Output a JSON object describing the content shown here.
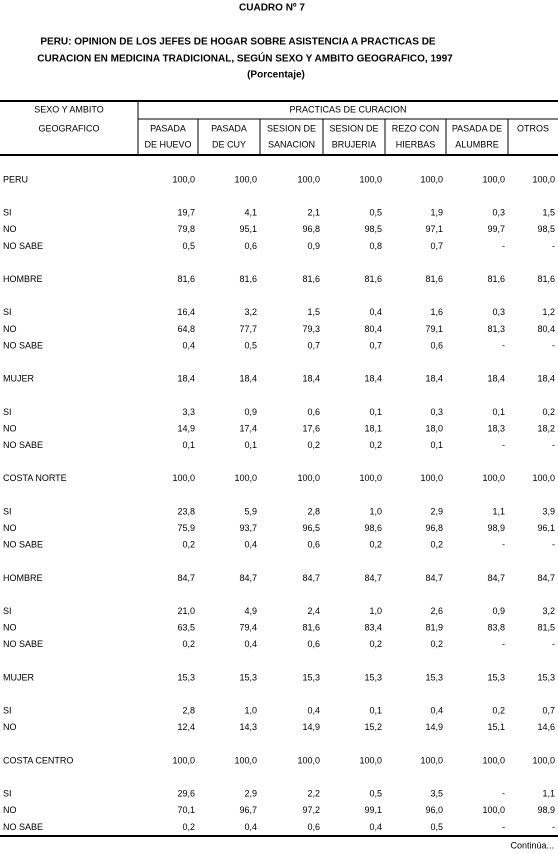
{
  "title": "CUADRO Nº 7",
  "subtitle": [
    "PERU: OPINION DE LOS JEFES DE HOGAR SOBRE ASISTENCIA A PRACTICAS DE",
    "CURACION EN MEDICINA TRADICIONAL, SEGÚN  SEXO Y AMBITO GEOGRAFICO, 1997"
  ],
  "unit": "(Porcentaje)",
  "header": {
    "stub": [
      "SEXO Y AMBITO",
      "GEOGRAFICO"
    ],
    "group": "PRACTICAS DE CURACION",
    "columns": [
      [
        "PASADA",
        "DE HUEVO"
      ],
      [
        "PASADA",
        "DE CUY"
      ],
      [
        "SESION DE",
        "SANACION"
      ],
      [
        "SESION DE",
        "BRUJERIA"
      ],
      [
        "REZO CON",
        "HIERBAS"
      ],
      [
        "PASADA DE",
        "ALUMBRE"
      ],
      [
        "OTROS"
      ]
    ]
  },
  "groups": [
    {
      "rows": [
        {
          "label": "PERU",
          "values": [
            "100,0",
            "100,0",
            "100,0",
            "100,0",
            "100,0",
            "100,0",
            "100,0"
          ]
        },
        {
          "label": "SI",
          "values": [
            "19,7",
            "4,1",
            "2,1",
            "0,5",
            "1,9",
            "0,3",
            "1,5"
          ]
        },
        {
          "label": "NO",
          "values": [
            "79,8",
            "95,1",
            "96,8",
            "98,5",
            "97,1",
            "99,7",
            "98,5"
          ]
        },
        {
          "label": "NO SABE",
          "values": [
            "0,5",
            "0,6",
            "0,9",
            "0,8",
            "0,7",
            "-",
            "-"
          ]
        }
      ]
    },
    {
      "rows": [
        {
          "label": "HOMBRE",
          "values": [
            "81,6",
            "81,6",
            "81,6",
            "81,6",
            "81,6",
            "81,6",
            "81,6"
          ]
        },
        {
          "label": "SI",
          "values": [
            "16,4",
            "3,2",
            "1,5",
            "0,4",
            "1,6",
            "0,3",
            "1,2"
          ]
        },
        {
          "label": "NO",
          "values": [
            "64,8",
            "77,7",
            "79,3",
            "80,4",
            "79,1",
            "81,3",
            "80,4"
          ]
        },
        {
          "label": "NO SABE",
          "values": [
            "0,4",
            "0,5",
            "0,7",
            "0,7",
            "0,6",
            "-",
            "-"
          ]
        }
      ]
    },
    {
      "rows": [
        {
          "label": "MUJER",
          "values": [
            "18,4",
            "18,4",
            "18,4",
            "18,4",
            "18,4",
            "18,4",
            "18,4"
          ]
        },
        {
          "label": "SI",
          "values": [
            "3,3",
            "0,9",
            "0,6",
            "0,1",
            "0,3",
            "0,1",
            "0,2"
          ]
        },
        {
          "label": "NO",
          "values": [
            "14,9",
            "17,4",
            "17,6",
            "18,1",
            "18,0",
            "18,3",
            "18,2"
          ]
        },
        {
          "label": "NO SABE",
          "values": [
            "0,1",
            "0,1",
            "0,2",
            "0,2",
            "0,1",
            "-",
            "-"
          ]
        }
      ]
    },
    {
      "rows": [
        {
          "label": "COSTA NORTE",
          "values": [
            "100,0",
            "100,0",
            "100,0",
            "100,0",
            "100,0",
            "100,0",
            "100,0"
          ]
        },
        {
          "label": "SI",
          "values": [
            "23,8",
            "5,9",
            "2,8",
            "1,0",
            "2,9",
            "1,1",
            "3,9"
          ]
        },
        {
          "label": "NO",
          "values": [
            "75,9",
            "93,7",
            "96,5",
            "98,6",
            "96,8",
            "98,9",
            "96,1"
          ]
        },
        {
          "label": "NO SABE",
          "values": [
            "0,2",
            "0,4",
            "0,6",
            "0,2",
            "0,2",
            "-",
            "-"
          ]
        }
      ]
    },
    {
      "rows": [
        {
          "label": "HOMBRE",
          "values": [
            "84,7",
            "84,7",
            "84,7",
            "84,7",
            "84,7",
            "84,7",
            "84,7"
          ]
        },
        {
          "label": "SI",
          "values": [
            "21,0",
            "4,9",
            "2,4",
            "1,0",
            "2,6",
            "0,9",
            "3,2"
          ]
        },
        {
          "label": "NO",
          "values": [
            "63,5",
            "79,4",
            "81,6",
            "83,4",
            "81,9",
            "83,8",
            "81,5"
          ]
        },
        {
          "label": "NO SABE",
          "values": [
            "0,2",
            "0,4",
            "0,6",
            "0,2",
            "0,2",
            "-",
            "-"
          ]
        }
      ]
    },
    {
      "rows": [
        {
          "label": "MUJER",
          "values": [
            "15,3",
            "15,3",
            "15,3",
            "15,3",
            "15,3",
            "15,3",
            "15,3"
          ]
        },
        {
          "label": "SI",
          "values": [
            "2,8",
            "1,0",
            "0,4",
            "0,1",
            "0,4",
            "0,2",
            "0,7"
          ]
        },
        {
          "label": "NO",
          "values": [
            "12,4",
            "14,3",
            "14,9",
            "15,2",
            "14,9",
            "15,1",
            "14,6"
          ]
        }
      ]
    },
    {
      "rows": [
        {
          "label": "COSTA CENTRO",
          "values": [
            "100,0",
            "100,0",
            "100,0",
            "100,0",
            "100,0",
            "100,0",
            "100,0"
          ]
        },
        {
          "label": "SI",
          "values": [
            "29,6",
            "2,9",
            "2,2",
            "0,5",
            "3,5",
            "-",
            "1,1"
          ]
        },
        {
          "label": "NO",
          "values": [
            "70,1",
            "96,7",
            "97,2",
            "99,1",
            "96,0",
            "100,0",
            "98,9"
          ]
        },
        {
          "label": "NO SABE",
          "values": [
            "0,2",
            "0,4",
            "0,6",
            "0,4",
            "0,5",
            "-",
            "-"
          ]
        }
      ]
    }
  ],
  "footer": "Continúa..."
}
